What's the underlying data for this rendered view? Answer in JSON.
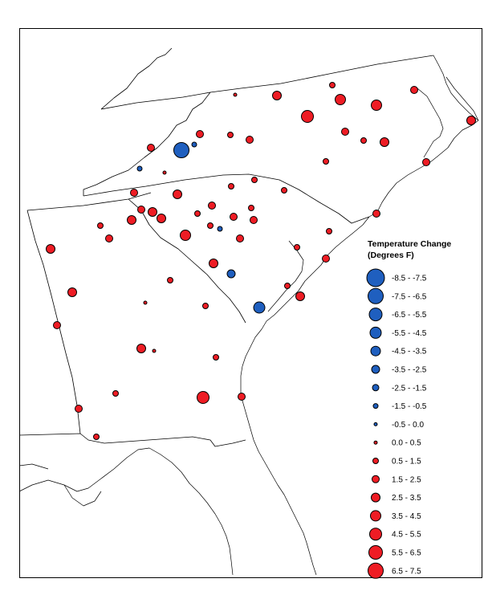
{
  "map": {
    "legend": {
      "title_line1": "Temperature Change",
      "title_line2": "(Degrees F)",
      "classes": [
        {
          "label": "-8.5 - -7.5",
          "color": "#1f5fbf"
        },
        {
          "label": "-7.5 - -6.5",
          "color": "#1f5fbf"
        },
        {
          "label": "-6.5 - -5.5",
          "color": "#1f5fbf"
        },
        {
          "label": "-5.5 - -4.5",
          "color": "#1f5fbf"
        },
        {
          "label": "-4.5 - -3.5",
          "color": "#1f5fbf"
        },
        {
          "label": "-3.5 - -2.5",
          "color": "#1f5fbf"
        },
        {
          "label": "-2.5 - -1.5",
          "color": "#1f5fbf"
        },
        {
          "label": "-1.5 - -0.5",
          "color": "#1f5fbf"
        },
        {
          "label": "-0.5 - 0.0",
          "color": "#1f5fbf"
        },
        {
          "label": "0.0 - 0.5",
          "color": "#ee1c24"
        },
        {
          "label": "0.5 - 1.5",
          "color": "#ee1c24"
        },
        {
          "label": "1.5 - 2.5",
          "color": "#ee1c24"
        },
        {
          "label": "2.5 - 3.5",
          "color": "#ee1c24"
        },
        {
          "label": "3.5 - 4.5",
          "color": "#ee1c24"
        },
        {
          "label": "4.5 - 5.5",
          "color": "#ee1c24"
        },
        {
          "label": "5.5 - 6.5",
          "color": "#ee1c24"
        },
        {
          "label": "6.5 - 7.5",
          "color": "#ee1c24"
        }
      ]
    },
    "colors": {
      "warming": "#ee1c24",
      "cooling": "#1f5fbf",
      "outline": "#000000"
    }
  }
}
